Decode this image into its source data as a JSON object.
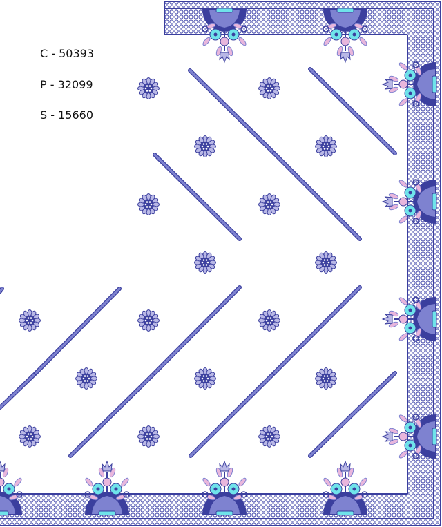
{
  "stitch_counts": {
    "colors": "C - 50393",
    "pattern": "P - 32099",
    "stitches": "S - 15660"
  },
  "palette": {
    "navy": "#3b3f9e",
    "periwinkle": "#7e82d0",
    "lavender": "#b9b8e6",
    "aqua": "#6fe3ea",
    "pink": "#e8b6dc"
  }
}
